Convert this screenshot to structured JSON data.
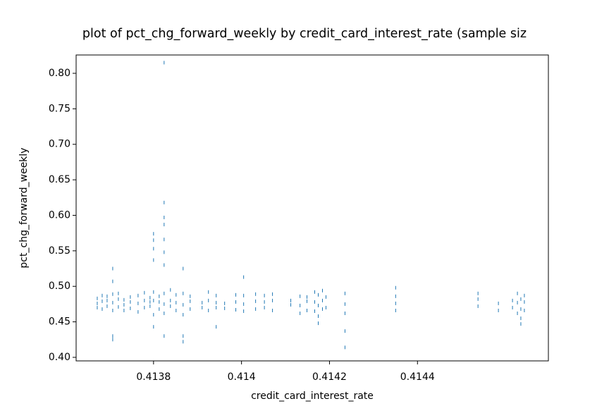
{
  "chart_data": {
    "type": "scatter",
    "title": "plot of pct_chg_forward_weekly by credit_card_interest_rate (sample siz",
    "x_label": "credit_card_interest_rate",
    "y_label": "pct_chg_forward_weekly",
    "color": "#1f77b4",
    "xlim": [
      0.413624,
      0.4146976
    ],
    "ylim": [
      0.395,
      0.8258
    ],
    "xticks": [
      0.4138,
      0.414,
      0.4142,
      0.4144
    ],
    "yticks": [
      {
        "value": 0.4,
        "label": "0.40"
      },
      0.45,
      {
        "value": 0.5,
        "label": "0.50"
      },
      0.55,
      {
        "value": 0.6,
        "label": "0.60"
      },
      0.65,
      {
        "value": 0.7,
        "label": "0.70"
      },
      0.75,
      {
        "value": 0.8,
        "label": "0.80"
      }
    ],
    "grid": false,
    "x": [
      0.413672,
      0.413672,
      0.413672,
      0.4136832,
      0.4136832,
      0.4136832,
      0.4136944,
      0.4136944,
      0.4136944,
      0.4137072,
      0.4137072,
      0.4137072,
      0.41372,
      0.41372,
      0.41372,
      0.4137328,
      0.4137328,
      0.4137328,
      0.4137472,
      0.4137472,
      0.4137472,
      0.4137648,
      0.4137648,
      0.4137648,
      0.4137792,
      0.4137792,
      0.4137792,
      0.413792,
      0.413792,
      0.413792,
      0.4138,
      0.4138,
      0.4138,
      0.4138128,
      0.4138128,
      0.4138128,
      0.413824,
      0.413824,
      0.413824,
      0.4138384,
      0.4138384,
      0.4138384,
      0.4138512,
      0.4138512,
      0.4138512,
      0.4138672,
      0.4138672,
      0.4138672,
      0.4138832,
      0.4138832,
      0.4138832,
      0.4139104,
      0.4139104,
      0.4139248,
      0.4139248,
      0.4139248,
      0.4139424,
      0.4139424,
      0.4139424,
      0.4139616,
      0.4139616,
      0.413987,
      0.413987,
      0.413987,
      0.4140048,
      0.4140048,
      0.4140048,
      0.414032,
      0.414032,
      0.414032,
      0.414052,
      0.414052,
      0.414052,
      0.4140704,
      0.4140704,
      0.4140704,
      0.414112,
      0.414112,
      0.414133,
      0.414133,
      0.414133,
      0.4141488,
      0.4141488,
      0.4141488,
      0.4141664,
      0.4141664,
      0.4141664,
      0.4141744,
      0.4141744,
      0.4141744,
      0.414184,
      0.414184,
      0.414184,
      0.414192,
      0.414192,
      0.4142352,
      0.4142352,
      0.4142352,
      0.4143504,
      0.4143504,
      0.4143504,
      0.4143504,
      0.4145376,
      0.4145376,
      0.4145376,
      0.414584,
      0.414584,
      0.414616,
      0.414616,
      0.4146272,
      0.4146272,
      0.4146272,
      0.414635,
      0.414635,
      0.414635,
      0.414643,
      0.414643,
      0.414643,
      0.413824,
      0.413824,
      0.413824,
      0.413824,
      0.413824,
      0.413824,
      0.413824,
      0.413824,
      0.4138,
      0.4138,
      0.4138,
      0.4138,
      0.4138,
      0.4138672,
      0.4138672,
      0.4138672,
      0.4137072,
      0.4137072,
      0.4137072,
      0.4137072,
      0.4140048,
      0.4142352,
      0.4142352,
      0.4139424,
      0.4141744,
      0.414635
    ],
    "values": [
      0.47,
      0.476,
      0.483,
      0.468,
      0.479,
      0.487,
      0.472,
      0.48,
      0.486,
      0.466,
      0.477,
      0.489,
      0.471,
      0.482,
      0.49,
      0.474,
      0.481,
      0.466,
      0.469,
      0.478,
      0.485,
      0.464,
      0.476,
      0.487,
      0.47,
      0.48,
      0.491,
      0.472,
      0.478,
      0.484,
      0.46,
      0.48,
      0.492,
      0.468,
      0.478,
      0.486,
      0.462,
      0.475,
      0.49,
      0.472,
      0.48,
      0.495,
      0.466,
      0.477,
      0.488,
      0.46,
      0.474,
      0.49,
      0.468,
      0.479,
      0.486,
      0.47,
      0.477,
      0.466,
      0.48,
      0.492,
      0.47,
      0.477,
      0.487,
      0.469,
      0.476,
      0.467,
      0.478,
      0.488,
      0.465,
      0.475,
      0.487,
      0.468,
      0.479,
      0.489,
      0.47,
      0.478,
      0.487,
      0.466,
      0.48,
      0.489,
      0.474,
      0.48,
      0.462,
      0.473,
      0.486,
      0.466,
      0.479,
      0.485,
      0.465,
      0.478,
      0.492,
      0.458,
      0.473,
      0.488,
      0.468,
      0.48,
      0.494,
      0.47,
      0.485,
      0.462,
      0.475,
      0.49,
      0.466,
      0.476,
      0.486,
      0.498,
      0.472,
      0.482,
      0.49,
      0.466,
      0.476,
      0.47,
      0.48,
      0.462,
      0.477,
      0.49,
      0.455,
      0.468,
      0.482,
      0.466,
      0.478,
      0.487,
      0.815,
      0.618,
      0.597,
      0.587,
      0.566,
      0.548,
      0.53,
      0.43,
      0.574,
      0.565,
      0.553,
      0.537,
      0.443,
      0.525,
      0.422,
      0.43,
      0.525,
      0.507,
      0.425,
      0.43,
      0.513,
      0.414,
      0.437,
      0.443,
      0.448,
      0.447
    ]
  }
}
